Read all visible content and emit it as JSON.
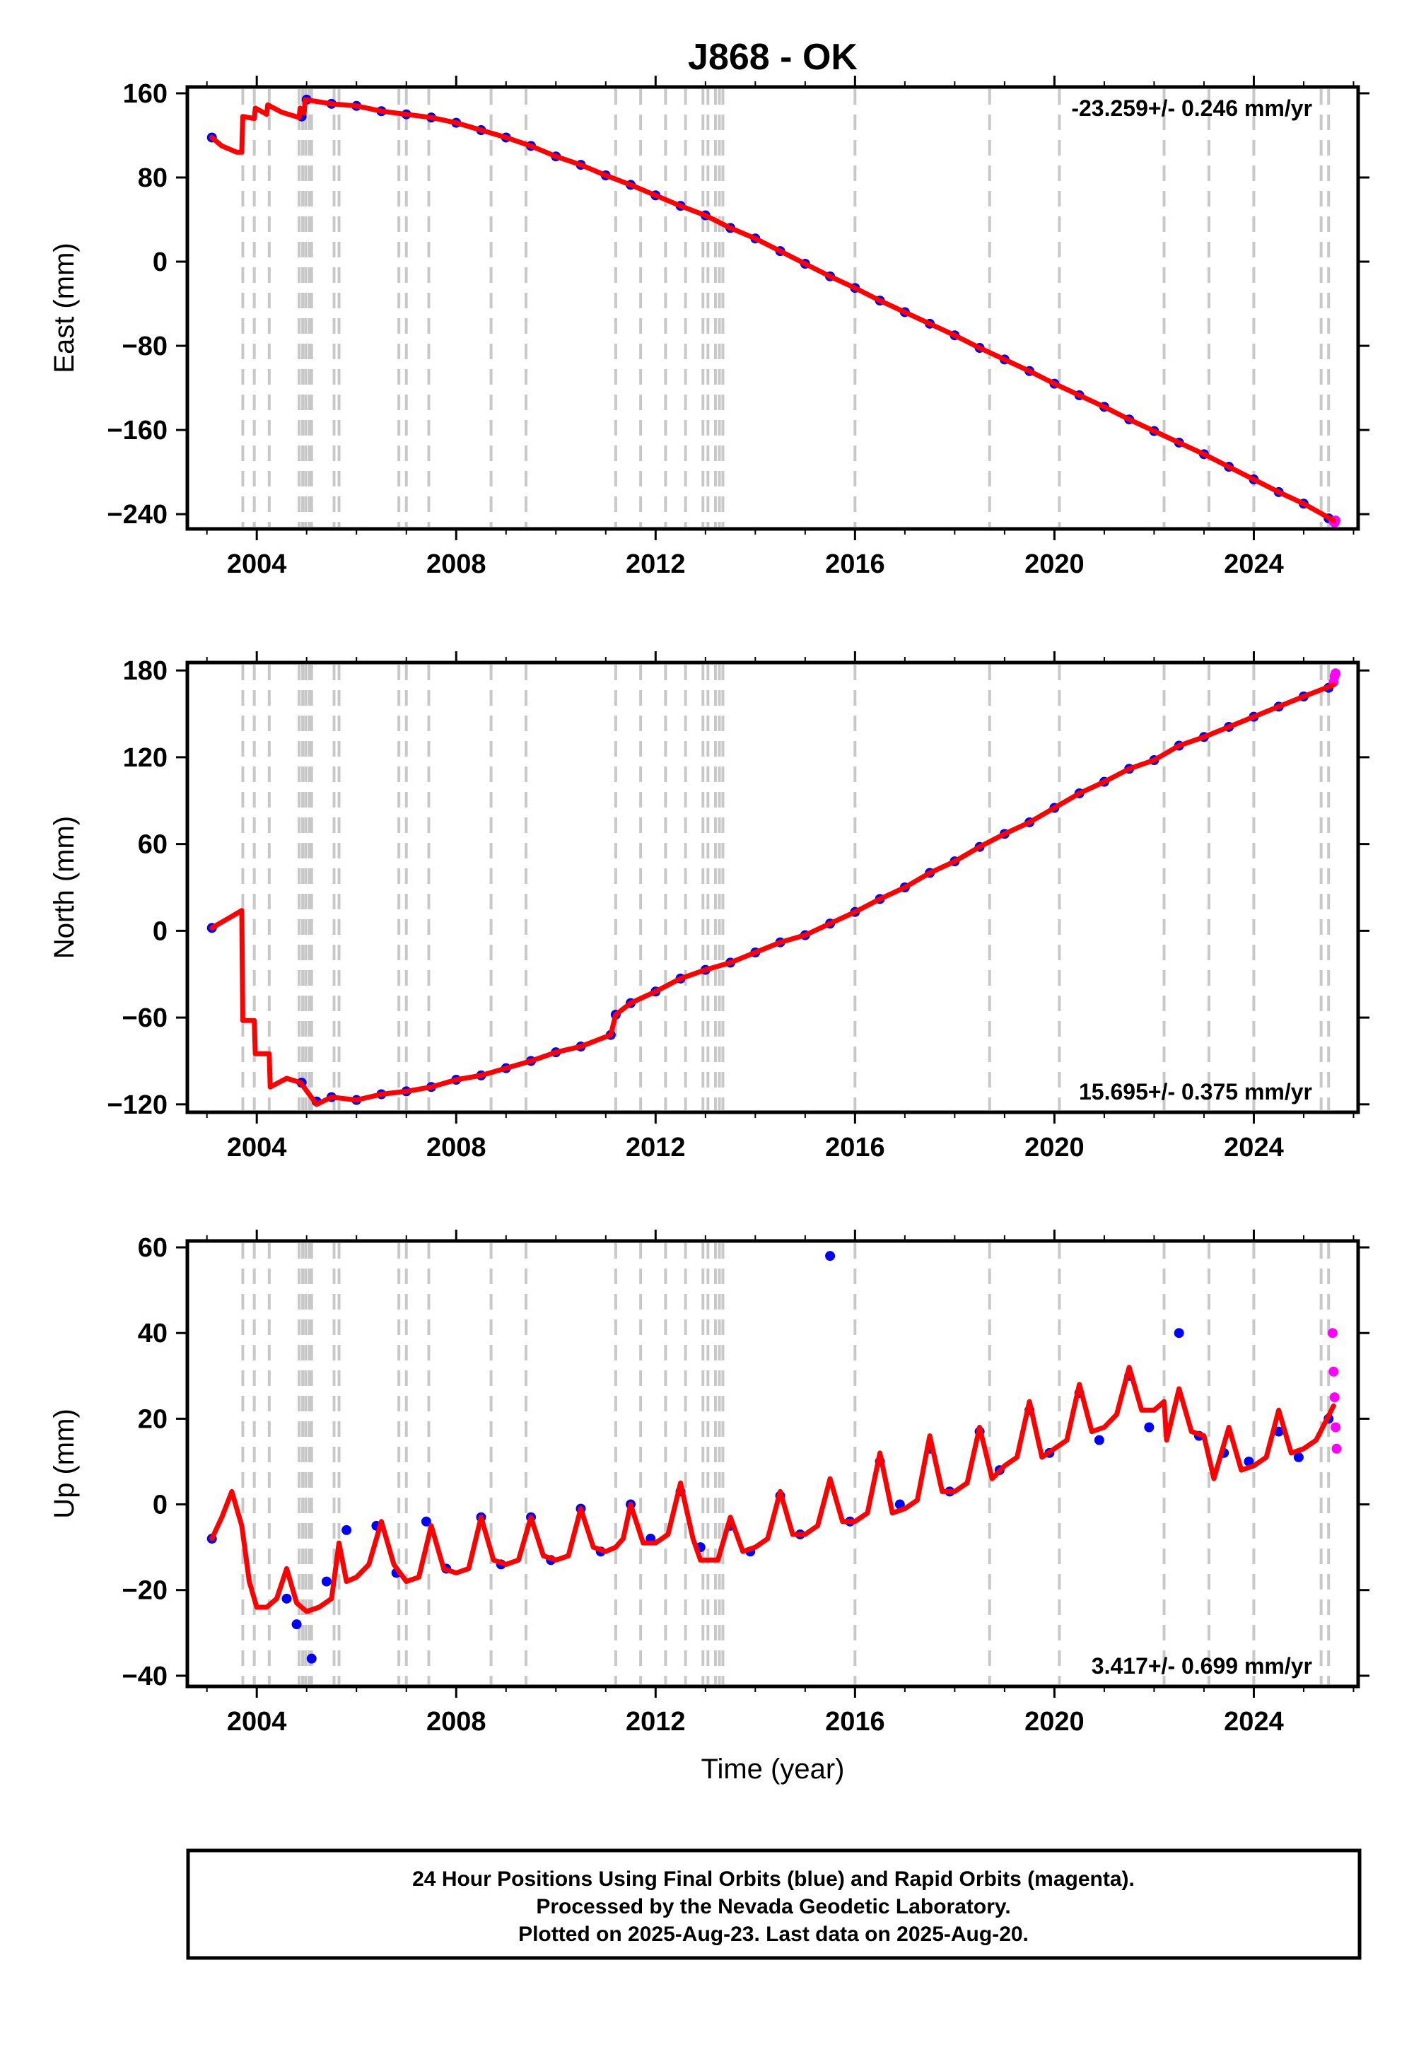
{
  "title": "J868 - OK",
  "xlabel": "Time (year)",
  "footer": [
    "24 Hour Positions Using Final Orbits (blue) and Rapid Orbits (magenta).",
    "Processed by the Nevada Geodetic Laboratory.",
    "Plotted on 2025-Aug-23. Last data on 2025-Aug-20."
  ],
  "colors": {
    "final_orbits": "#0000ff",
    "rapid_orbits": "#ff00ff",
    "model_fit": "#ff0000",
    "event_lines": "#c8c8c8",
    "frame": "#000000"
  },
  "chart_data": [
    {
      "type": "scatter",
      "panel": "east",
      "ylabel": "East (mm)",
      "rate": "-23.259+/- 0.246 mm/yr",
      "rate_position": "top-right",
      "xlim": [
        2002.65,
        2026.05
      ],
      "ylim": [
        -252,
        164
      ],
      "xticks": [
        2004,
        2008,
        2012,
        2016,
        2020,
        2024
      ],
      "xtick_labels": [
        "2004",
        "2008",
        "2012",
        "2016",
        "2020",
        "2024"
      ],
      "yticks": [
        160,
        80,
        0,
        -80,
        -160,
        -240
      ],
      "ytick_labels": [
        "160",
        "80",
        "0",
        "−80",
        "−160",
        "−240"
      ],
      "grid": false,
      "series": [
        {
          "name": "Final Orbits (blue)",
          "x": [
            2003.1,
            2004.9,
            2005.0,
            2005.5,
            2006.0,
            2006.5,
            2007.0,
            2007.5,
            2008.0,
            2008.5,
            2009.0,
            2009.5,
            2010.0,
            2010.5,
            2011.0,
            2011.5,
            2012.0,
            2012.5,
            2013.0,
            2013.5,
            2014.0,
            2014.5,
            2015.0,
            2015.5,
            2016.0,
            2016.5,
            2017.0,
            2017.5,
            2018.0,
            2018.5,
            2019.0,
            2019.5,
            2020.0,
            2020.5,
            2021.0,
            2021.5,
            2022.0,
            2022.5,
            2023.0,
            2023.5,
            2024.0,
            2024.5,
            2025.0,
            2025.5
          ],
          "y": [
            118,
            138,
            154,
            150,
            148,
            143,
            140,
            137,
            132,
            125,
            118,
            110,
            100,
            92,
            82,
            73,
            63,
            53,
            44,
            32,
            22,
            10,
            -2,
            -14,
            -25,
            -37,
            -48,
            -59,
            -70,
            -82,
            -93,
            -104,
            -116,
            -127,
            -138,
            -150,
            -161,
            -172,
            -183,
            -195,
            -207,
            -219,
            -230,
            -244
          ]
        },
        {
          "name": "Rapid Orbits (magenta)",
          "x": [
            2025.6,
            2025.62,
            2025.64
          ],
          "y": [
            -247,
            -248,
            -246
          ]
        },
        {
          "name": "Model fit",
          "x": [
            2003.1,
            2003.3,
            2003.6,
            2003.7,
            2003.72,
            2003.95,
            2003.97,
            2004.2,
            2004.22,
            2004.5,
            2004.85,
            2004.87,
            2004.95,
            2004.97,
            2005.5,
            2006.0,
            2006.5,
            2007.0,
            2007.5,
            2008.0,
            2008.5,
            2009.0,
            2009.5,
            2010.0,
            2010.5,
            2011.0,
            2011.5,
            2012.0,
            2012.5,
            2013.0,
            2013.5,
            2014.0,
            2014.5,
            2015.0,
            2015.5,
            2016.0,
            2016.5,
            2017.0,
            2017.5,
            2018.0,
            2018.5,
            2019.0,
            2019.5,
            2020.0,
            2020.5,
            2021.0,
            2021.5,
            2022.0,
            2022.5,
            2023.0,
            2023.5,
            2024.0,
            2024.5,
            2025.0,
            2025.6
          ],
          "y": [
            118,
            110,
            104,
            104,
            138,
            136,
            146,
            140,
            149,
            142,
            137,
            146,
            141,
            154,
            150,
            148,
            143,
            140,
            137,
            132,
            125,
            118,
            110,
            100,
            92,
            82,
            73,
            63,
            53,
            44,
            32,
            22,
            10,
            -2,
            -14,
            -25,
            -37,
            -48,
            -59,
            -70,
            -82,
            -93,
            -104,
            -116,
            -127,
            -138,
            -150,
            -161,
            -172,
            -183,
            -195,
            -207,
            -219,
            -230,
            -246
          ]
        }
      ]
    },
    {
      "type": "scatter",
      "panel": "north",
      "ylabel": "North (mm)",
      "rate": "15.695+/- 0.375 mm/yr",
      "rate_position": "bottom-right",
      "xlim": [
        2002.65,
        2026.05
      ],
      "ylim": [
        -124,
        184
      ],
      "xticks": [
        2004,
        2008,
        2012,
        2016,
        2020,
        2024
      ],
      "xtick_labels": [
        "2004",
        "2008",
        "2012",
        "2016",
        "2020",
        "2024"
      ],
      "yticks": [
        180,
        120,
        60,
        0,
        -60,
        -120
      ],
      "ytick_labels": [
        "180",
        "120",
        "60",
        "0",
        "−60",
        "−120"
      ],
      "grid": false,
      "series": [
        {
          "name": "Final Orbits (blue)",
          "x": [
            2003.1,
            2004.9,
            2005.2,
            2005.5,
            2006.0,
            2006.5,
            2007.0,
            2007.5,
            2008.0,
            2008.5,
            2009.0,
            2009.5,
            2010.0,
            2010.5,
            2011.1,
            2011.2,
            2011.5,
            2012.0,
            2012.5,
            2013.0,
            2013.5,
            2014.0,
            2014.5,
            2015.0,
            2015.5,
            2016.0,
            2016.5,
            2017.0,
            2017.5,
            2018.0,
            2018.5,
            2019.0,
            2019.5,
            2020.0,
            2020.5,
            2021.0,
            2021.5,
            2022.0,
            2022.5,
            2023.0,
            2023.5,
            2024.0,
            2024.5,
            2025.0,
            2025.5
          ],
          "y": [
            2,
            -105,
            -118,
            -115,
            -117,
            -113,
            -111,
            -108,
            -103,
            -100,
            -95,
            -90,
            -84,
            -80,
            -72,
            -58,
            -50,
            -42,
            -33,
            -27,
            -22,
            -15,
            -8,
            -3,
            5,
            13,
            22,
            30,
            40,
            48,
            58,
            67,
            75,
            85,
            95,
            103,
            112,
            118,
            128,
            134,
            141,
            148,
            155,
            162,
            168
          ]
        },
        {
          "name": "Rapid Orbits (magenta)",
          "x": [
            2025.6,
            2025.62,
            2025.64
          ],
          "y": [
            172,
            176,
            178
          ]
        },
        {
          "name": "Model fit",
          "x": [
            2003.1,
            2003.4,
            2003.7,
            2003.72,
            2003.95,
            2003.97,
            2004.25,
            2004.27,
            2004.6,
            2004.88,
            2005.2,
            2005.5,
            2006.0,
            2006.5,
            2007.0,
            2007.5,
            2008.0,
            2008.5,
            2009.0,
            2009.5,
            2010.0,
            2010.5,
            2011.1,
            2011.2,
            2011.5,
            2012.0,
            2012.5,
            2013.0,
            2013.5,
            2014.0,
            2014.5,
            2015.0,
            2015.5,
            2016.0,
            2016.5,
            2017.0,
            2017.5,
            2018.0,
            2018.5,
            2019.0,
            2019.5,
            2020.0,
            2020.5,
            2021.0,
            2021.5,
            2022.0,
            2022.5,
            2023.0,
            2023.5,
            2024.0,
            2024.5,
            2025.0,
            2025.6
          ],
          "y": [
            2,
            8,
            14,
            -62,
            -62,
            -85,
            -85,
            -108,
            -102,
            -105,
            -120,
            -115,
            -117,
            -113,
            -111,
            -108,
            -103,
            -100,
            -95,
            -90,
            -84,
            -80,
            -72,
            -58,
            -50,
            -42,
            -33,
            -27,
            -22,
            -15,
            -8,
            -3,
            5,
            13,
            22,
            30,
            40,
            48,
            58,
            67,
            75,
            85,
            95,
            103,
            112,
            118,
            128,
            134,
            141,
            148,
            155,
            162,
            170
          ]
        }
      ]
    },
    {
      "type": "scatter",
      "panel": "up",
      "ylabel": "Up (mm)",
      "rate": "3.417+/- 0.699 mm/yr",
      "rate_position": "bottom-right",
      "xlim": [
        2002.65,
        2026.05
      ],
      "ylim": [
        -42,
        61
      ],
      "xticks": [
        2004,
        2008,
        2012,
        2016,
        2020,
        2024
      ],
      "xtick_labels": [
        "2004",
        "2008",
        "2012",
        "2016",
        "2020",
        "2024"
      ],
      "yticks": [
        60,
        40,
        20,
        0,
        -20,
        -40
      ],
      "ytick_labels": [
        "60",
        "40",
        "20",
        "0",
        "−20",
        "−40"
      ],
      "grid": false,
      "series": [
        {
          "name": "Final Orbits (blue)",
          "x": [
            2003.1,
            2004.6,
            2004.8,
            2005.1,
            2005.4,
            2005.8,
            2006.4,
            2006.8,
            2007.4,
            2007.8,
            2008.5,
            2008.9,
            2009.5,
            2009.9,
            2010.5,
            2010.9,
            2011.5,
            2011.9,
            2012.5,
            2012.9,
            2013.5,
            2013.9,
            2014.5,
            2014.9,
            2015.5,
            2015.9,
            2016.5,
            2016.9,
            2017.5,
            2017.9,
            2018.5,
            2018.9,
            2019.5,
            2019.9,
            2020.5,
            2020.9,
            2021.5,
            2021.9,
            2022.5,
            2022.9,
            2023.4,
            2023.9,
            2024.5,
            2024.9,
            2025.5
          ],
          "y": [
            -8,
            -22,
            -28,
            -36,
            -18,
            -6,
            -5,
            -16,
            -4,
            -15,
            -3,
            -14,
            -3,
            -13,
            -1,
            -11,
            0,
            -8,
            3,
            -10,
            -5,
            -11,
            2,
            -7,
            58,
            -4,
            10,
            0,
            13,
            3,
            17,
            8,
            22,
            12,
            26,
            15,
            30,
            18,
            40,
            16,
            12,
            10,
            17,
            11,
            20
          ]
        },
        {
          "name": "Rapid Orbits (magenta)",
          "x": [
            2025.58,
            2025.6,
            2025.62,
            2025.64,
            2025.66
          ],
          "y": [
            40,
            31,
            25,
            18,
            13
          ]
        },
        {
          "name": "Model fit",
          "x": [
            2003.1,
            2003.3,
            2003.5,
            2003.7,
            2003.85,
            2004.0,
            2004.2,
            2004.4,
            2004.6,
            2004.8,
            2005.0,
            2005.25,
            2005.5,
            2005.65,
            2005.8,
            2006.0,
            2006.25,
            2006.5,
            2006.75,
            2007.0,
            2007.25,
            2007.5,
            2007.75,
            2008.0,
            2008.25,
            2008.5,
            2008.75,
            2009.0,
            2009.25,
            2009.5,
            2009.75,
            2010.0,
            2010.25,
            2010.5,
            2010.75,
            2011.0,
            2011.2,
            2011.35,
            2011.5,
            2011.75,
            2012.0,
            2012.25,
            2012.5,
            2012.75,
            2012.9,
            2013.25,
            2013.5,
            2013.75,
            2014.0,
            2014.25,
            2014.5,
            2014.75,
            2015.0,
            2015.25,
            2015.5,
            2015.75,
            2016.0,
            2016.25,
            2016.5,
            2016.75,
            2017.0,
            2017.25,
            2017.5,
            2017.75,
            2018.0,
            2018.25,
            2018.5,
            2018.75,
            2019.0,
            2019.25,
            2019.5,
            2019.75,
            2020.0,
            2020.25,
            2020.5,
            2020.75,
            2021.0,
            2021.25,
            2021.5,
            2021.75,
            2022.0,
            2022.2,
            2022.25,
            2022.5,
            2022.75,
            2023.0,
            2023.2,
            2023.5,
            2023.75,
            2024.0,
            2024.25,
            2024.5,
            2024.75,
            2025.0,
            2025.25,
            2025.6
          ],
          "y": [
            -8,
            -3,
            3,
            -5,
            -18,
            -24,
            -24,
            -22,
            -15,
            -23,
            -25,
            -24,
            -22,
            -9,
            -18,
            -17,
            -14,
            -4,
            -14,
            -18,
            -17,
            -5,
            -15,
            -16,
            -15,
            -3,
            -13,
            -14,
            -13,
            -3,
            -12,
            -13,
            -12,
            -1,
            -10,
            -11,
            -10,
            -8,
            0,
            -9,
            -9,
            -7,
            5,
            -8,
            -13,
            -13,
            -3,
            -11,
            -10,
            -8,
            3,
            -7,
            -7,
            -5,
            6,
            -4,
            -4,
            -2,
            12,
            -2,
            -1,
            1,
            16,
            3,
            3,
            5,
            18,
            6,
            9,
            11,
            24,
            11,
            13,
            15,
            28,
            17,
            18,
            21,
            32,
            22,
            22,
            24,
            15,
            27,
            17,
            16,
            6,
            18,
            8,
            9,
            11,
            22,
            12,
            13,
            15,
            23
          ]
        }
      ]
    }
  ],
  "event_lines_years": [
    2003.72,
    2003.95,
    2004.25,
    2004.85,
    2004.92,
    2004.98,
    2005.05,
    2005.1,
    2005.55,
    2005.65,
    2006.85,
    2007.0,
    2007.45,
    2008.7,
    2009.4,
    2011.2,
    2011.7,
    2012.2,
    2012.6,
    2012.95,
    2013.05,
    2013.2,
    2013.28,
    2013.35,
    2016.0,
    2018.7,
    2020.1,
    2022.2,
    2023.1,
    2024.0,
    2025.35,
    2025.5
  ]
}
